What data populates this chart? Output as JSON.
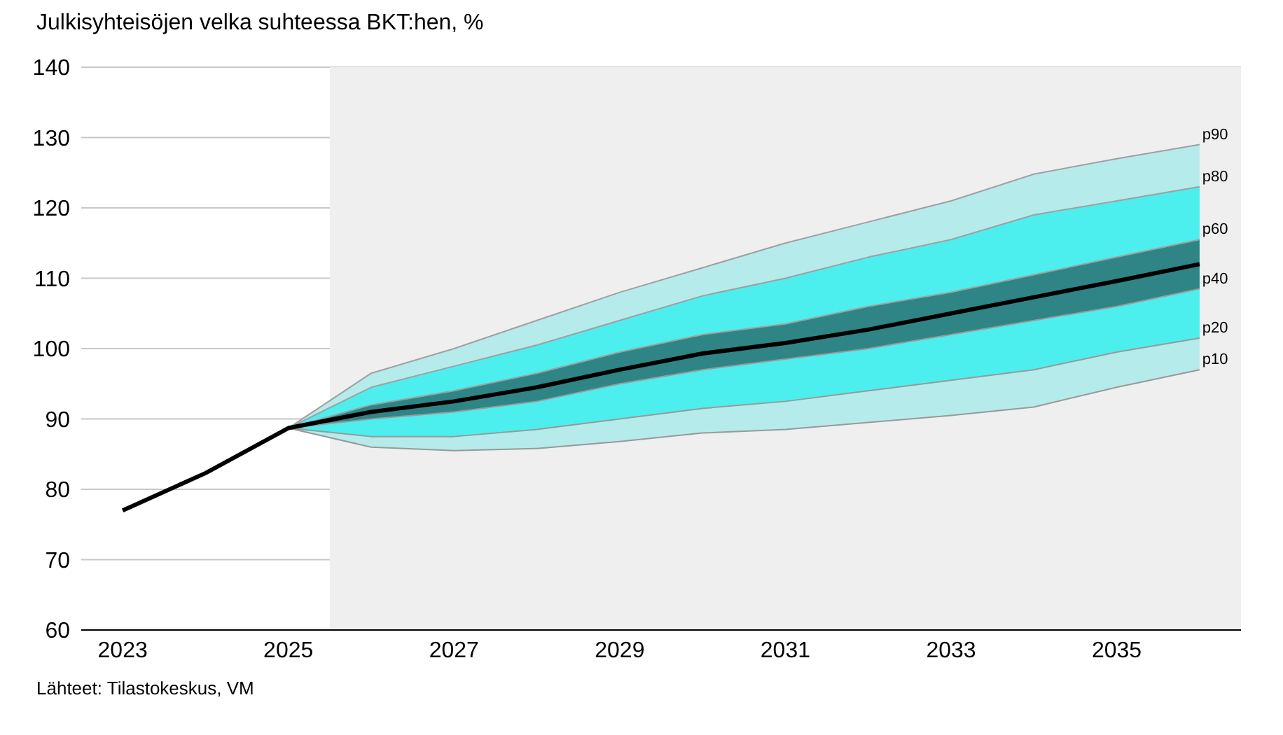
{
  "chart_data": {
    "type": "line",
    "title": "Julkisyhteisöjen velka suhteessa BKT:hen, %",
    "x": [
      2023,
      2024,
      2025,
      2026,
      2027,
      2028,
      2029,
      2030,
      2031,
      2032,
      2033,
      2034,
      2035,
      2036
    ],
    "series": [
      {
        "name": "p90",
        "type": "area",
        "color": "#b5ebeb",
        "values": [
          null,
          null,
          88.7,
          96.5,
          100,
          104,
          108,
          111.5,
          115,
          118,
          121,
          124.8,
          127,
          129
        ]
      },
      {
        "name": "p80",
        "type": "area",
        "color": "#4deeee",
        "values": [
          null,
          null,
          88.7,
          94.5,
          97.5,
          100.5,
          104,
          107.5,
          110,
          113,
          115.5,
          119,
          121,
          123
        ]
      },
      {
        "name": "p60",
        "type": "area",
        "color": "#2f8585",
        "values": [
          null,
          null,
          88.7,
          92,
          94,
          96.5,
          99.5,
          102,
          103.5,
          106,
          108,
          110.5,
          113,
          115.5
        ]
      },
      {
        "name": "p40",
        "type": "line",
        "color": "#999999",
        "values": [
          null,
          null,
          88.7,
          90,
          91,
          92.5,
          95,
          97,
          98.5,
          100,
          102,
          104,
          106,
          108.5
        ]
      },
      {
        "name": "p20",
        "type": "line",
        "color": "#999999",
        "values": [
          null,
          null,
          88.7,
          87.5,
          87.5,
          88.5,
          90,
          91.5,
          92.5,
          94,
          95.5,
          97,
          99.5,
          101.5
        ]
      },
      {
        "name": "p10",
        "type": "line",
        "color": "#999999",
        "values": [
          null,
          null,
          88.7,
          86,
          85.5,
          85.8,
          86.8,
          88,
          88.5,
          89.5,
          90.5,
          91.7,
          94.5,
          97
        ]
      },
      {
        "color": "#000000",
        "values": [
          77,
          82.3,
          88.7,
          91,
          92.5,
          94.5,
          97,
          99.3,
          100.8,
          102.7,
          105,
          107.3,
          109.6,
          112
        ]
      }
    ],
    "xlim": [
      2022.5,
      2036.5
    ],
    "xticks": [
      2023,
      2025,
      2027,
      2029,
      2031,
      2033,
      2035
    ],
    "ylim": [
      60,
      140
    ],
    "yticks": [
      60,
      70,
      80,
      90,
      100,
      110,
      120,
      130,
      140
    ],
    "bands": [
      {
        "axis": "x",
        "from": 2025.5,
        "to": 2036.5,
        "color": "#efefef"
      }
    ],
    "grid": "y",
    "annotations": [
      "Lähteet: Tilastokeskus, VM"
    ]
  }
}
